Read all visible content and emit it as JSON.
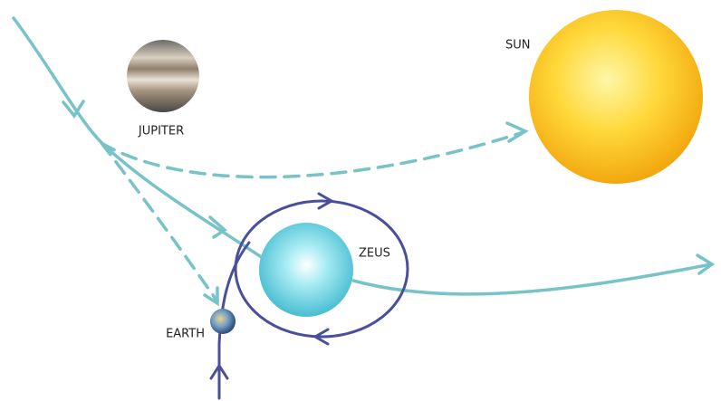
{
  "nodes": [
    {
      "label": "SUN"
    },
    {
      "label": "JUPITER"
    },
    {
      "label": "ZEUS"
    },
    {
      "label": "EARTH"
    }
  ]
}
